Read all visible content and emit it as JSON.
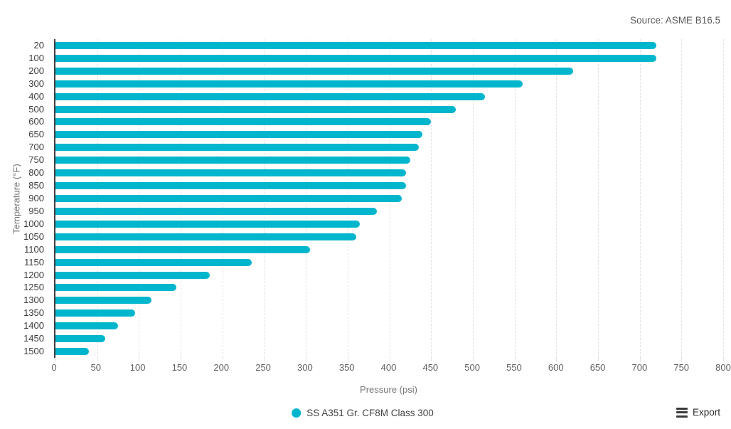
{
  "header": {
    "source": "Source: ASME B16.5"
  },
  "chart_data": {
    "type": "bar",
    "orientation": "horizontal",
    "title": "",
    "categories": [
      "20",
      "100",
      "200",
      "300",
      "400",
      "500",
      "600",
      "650",
      "700",
      "750",
      "800",
      "850",
      "900",
      "950",
      "1000",
      "1050",
      "1100",
      "1150",
      "1200",
      "1250",
      "1300",
      "1350",
      "1400",
      "1450",
      "1500"
    ],
    "values": [
      720,
      720,
      620,
      560,
      515,
      480,
      450,
      440,
      435,
      425,
      420,
      420,
      415,
      385,
      365,
      360,
      305,
      235,
      185,
      145,
      115,
      95,
      75,
      60,
      40
    ],
    "series_name": "SS A351 Gr. CF8M Class 300",
    "xlabel": "Pressure (psi)",
    "ylabel": "Temperature (°F)",
    "xlim": [
      0,
      800
    ],
    "xticks": [
      0,
      50,
      100,
      150,
      200,
      250,
      300,
      350,
      400,
      450,
      500,
      550,
      600,
      650,
      700,
      750,
      800
    ],
    "grid": "vertical-dashed",
    "legend_position": "bottom-center",
    "bar_color": "#00b6cd"
  },
  "legend": {
    "label": "SS A351 Gr. CF8M Class 300",
    "color": "#00b6cd"
  },
  "footer": {
    "export_label": "Export"
  }
}
